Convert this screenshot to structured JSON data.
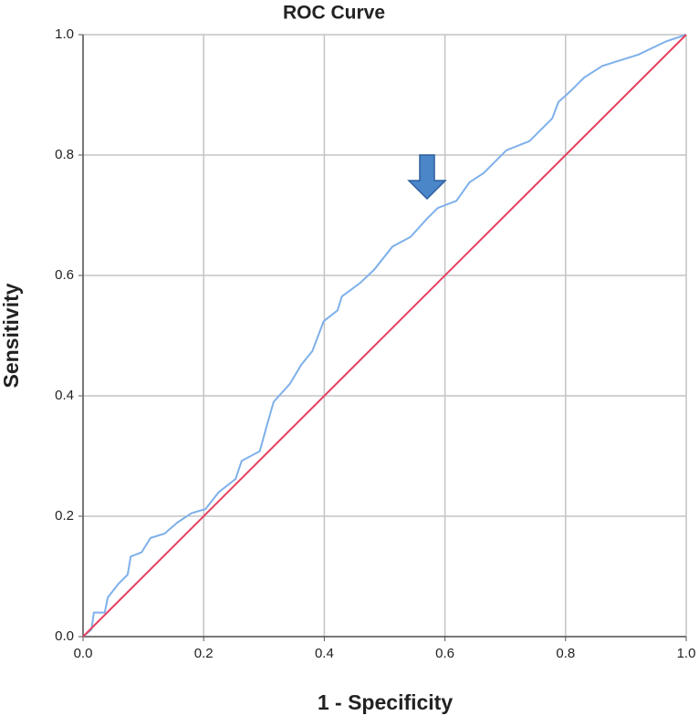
{
  "chart_data": {
    "type": "line",
    "title": "ROC Curve",
    "x_label": "1 - Specificity",
    "y_label": "Sensitivity",
    "xlim": [
      0,
      1
    ],
    "ylim": [
      0,
      1
    ],
    "xticks": [
      {
        "value": 0,
        "label": "0.0"
      },
      0.2,
      0.4,
      0.6,
      0.8,
      {
        "value": 1,
        "label": "1.0"
      }
    ],
    "yticks": [
      {
        "value": 0,
        "label": "0.0"
      },
      0.2,
      0.4,
      0.6,
      0.8,
      {
        "value": 1,
        "label": "1.0"
      }
    ],
    "grid": true,
    "series": [
      {
        "color": "#7eb0ea",
        "x": [
          0,
          0.014,
          0.018,
          0.036,
          0.041,
          0.059,
          0.074,
          0.079,
          0.097,
          0.112,
          0.135,
          0.157,
          0.18,
          0.203,
          0.225,
          0.253,
          0.263,
          0.293,
          0.304,
          0.316,
          0.343,
          0.362,
          0.38,
          0.399,
          0.422,
          0.429,
          0.46,
          0.483,
          0.513,
          0.543,
          0.57,
          0.588,
          0.619,
          0.641,
          0.664,
          0.702,
          0.74,
          0.778,
          0.788,
          0.808,
          0.831,
          0.861,
          0.921,
          0.967,
          1
        ],
        "values": [
          0,
          0.012,
          0.04,
          0.04,
          0.065,
          0.088,
          0.103,
          0.133,
          0.14,
          0.164,
          0.171,
          0.19,
          0.205,
          0.212,
          0.24,
          0.262,
          0.292,
          0.308,
          0.348,
          0.39,
          0.42,
          0.452,
          0.474,
          0.524,
          0.542,
          0.565,
          0.588,
          0.61,
          0.648,
          0.664,
          0.694,
          0.712,
          0.724,
          0.755,
          0.77,
          0.808,
          0.823,
          0.861,
          0.888,
          0.906,
          0.929,
          0.948,
          0.967,
          0.989,
          1
        ]
      },
      {
        "color": "#e5405e",
        "x": [
          0,
          1
        ],
        "values": [
          0,
          1
        ]
      }
    ]
  }
}
